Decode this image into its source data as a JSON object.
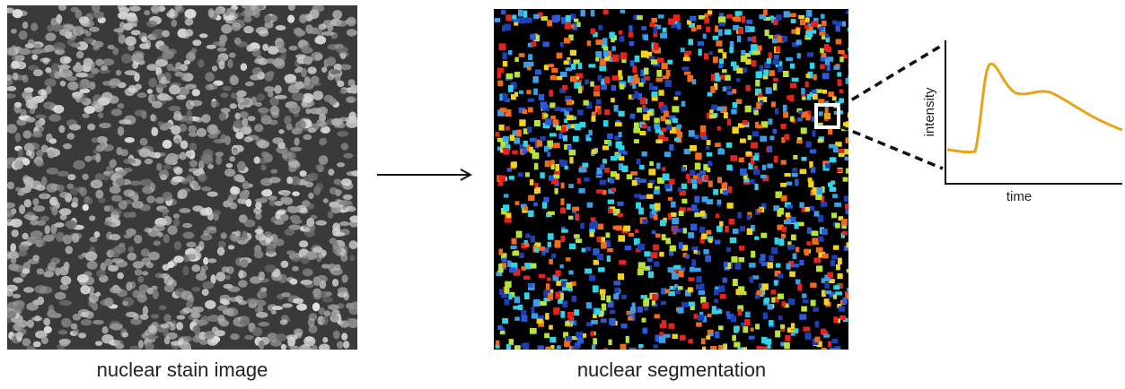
{
  "panels": {
    "stain": {
      "caption": "nuclear stain image"
    },
    "segmentation": {
      "caption": "nuclear segmentation"
    }
  },
  "plot": {
    "y_label": "intensity",
    "x_label": "time"
  }
}
